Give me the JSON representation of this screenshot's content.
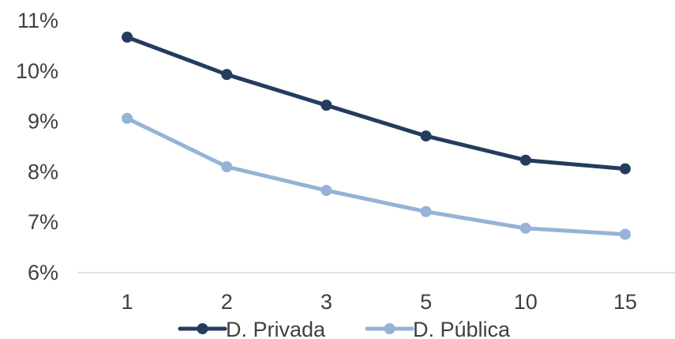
{
  "chart_data": {
    "type": "line",
    "categories": [
      "1",
      "2",
      "3",
      "5",
      "10",
      "15"
    ],
    "ylim": [
      0.06,
      0.11
    ],
    "yticks": [
      0.06,
      0.07,
      0.08,
      0.09,
      0.1,
      0.11
    ],
    "ytick_labels": [
      "6%",
      "7%",
      "8%",
      "9%",
      "10%",
      "11%"
    ],
    "grid": false,
    "legend_position": "bottom",
    "series": [
      {
        "name": "D. Privada",
        "color": "#243c5e",
        "values": [
          0.1067,
          0.0993,
          0.0932,
          0.0871,
          0.0823,
          0.0806
        ]
      },
      {
        "name": "D. Pública",
        "color": "#95b3d7",
        "values": [
          0.0906,
          0.081,
          0.0763,
          0.0721,
          0.0688,
          0.0676
        ]
      }
    ]
  }
}
